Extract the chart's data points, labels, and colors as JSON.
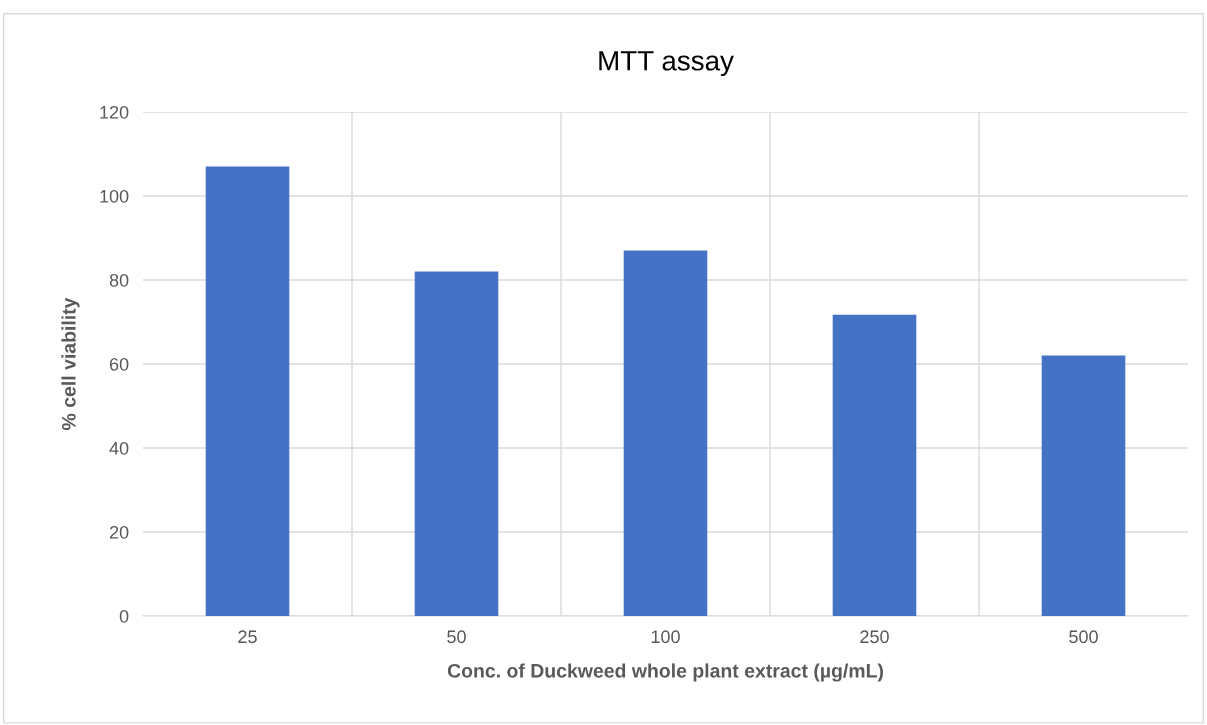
{
  "chart_data": {
    "type": "bar",
    "title": "MTT assay",
    "xlabel": "Conc. of Duckweed whole plant extract (µg/mL)",
    "ylabel": "% cell viability",
    "categories": [
      "25",
      "50",
      "100",
      "250",
      "500"
    ],
    "values": [
      107,
      82,
      87,
      71.7,
      62
    ],
    "color": "#4472c4",
    "ylim": [
      0,
      120
    ],
    "yticks": [
      0,
      20,
      40,
      60,
      80,
      100,
      120
    ],
    "grid": true
  }
}
